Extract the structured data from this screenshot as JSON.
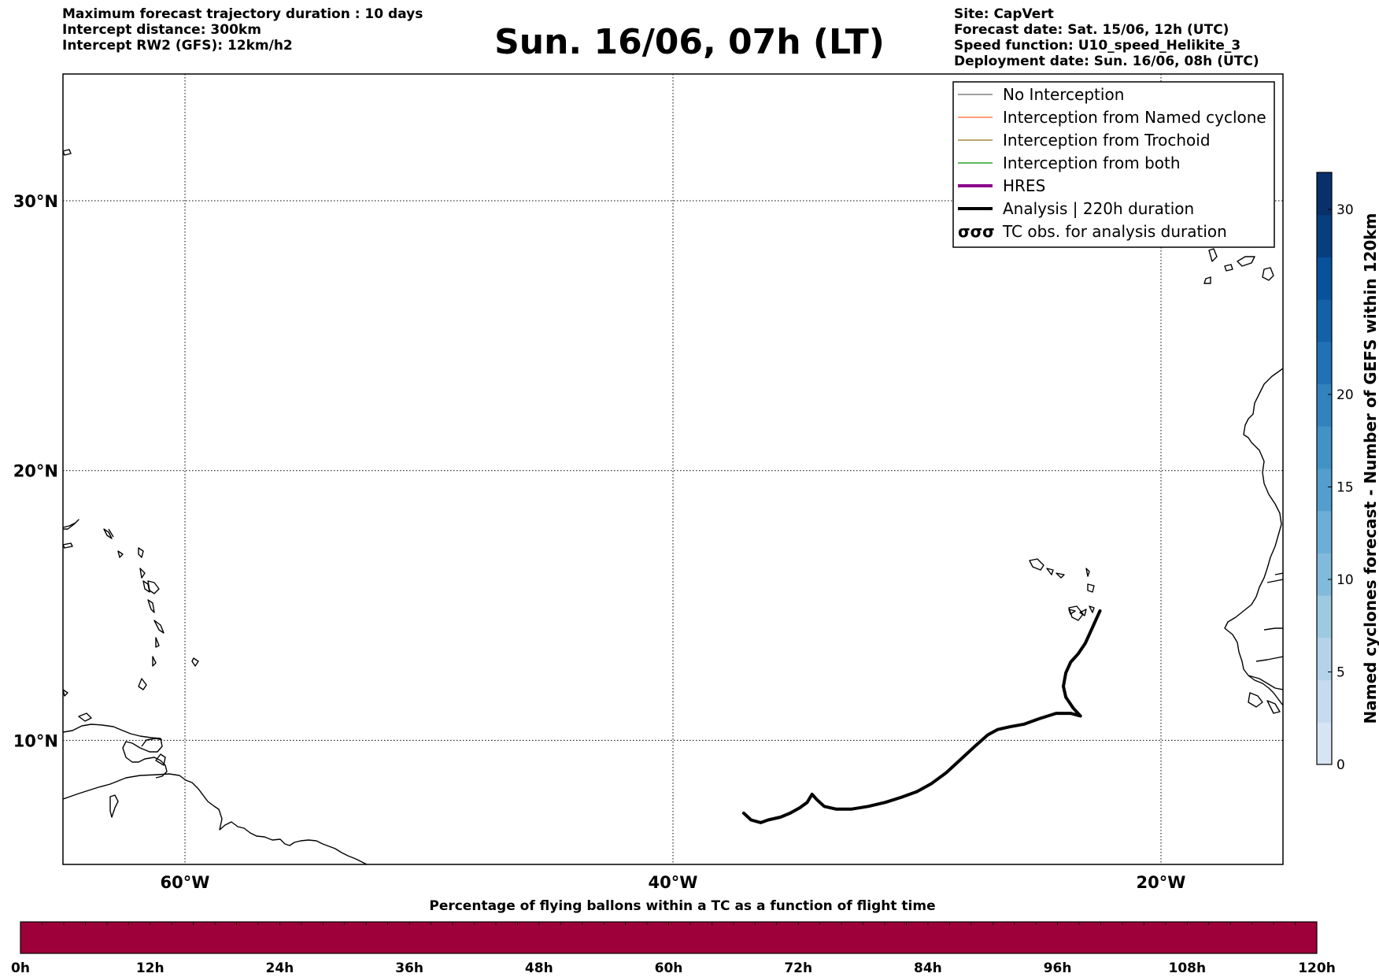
{
  "header_left": [
    "Maximum forecast trajectory duration : 10 days",
    "Intercept distance: 300km",
    "Intercept RW2 (GFS):  12km/h2"
  ],
  "title": "Sun. 16/06, 07h (LT)",
  "header_right": [
    "Site: CapVert",
    "Forecast date: Sat. 15/06, 12h (UTC)",
    "Speed function: U10_speed_Helikite_3",
    "Deployment date: Sun. 16/06, 08h (UTC)"
  ],
  "map": {
    "lon_range": [
      -65,
      -15
    ],
    "lat_range": [
      5.4,
      34.7
    ],
    "lat_lines": [
      {
        "value": 30,
        "label": "30°N"
      },
      {
        "value": 20,
        "label": "20°N"
      },
      {
        "value": 10,
        "label": "10°N"
      }
    ],
    "lon_lines": [
      {
        "value": -60,
        "label": "60°W"
      },
      {
        "value": -40,
        "label": "40°W"
      },
      {
        "value": -20,
        "label": "20°W"
      }
    ],
    "analysis_track": [
      [
        -22.5,
        14.8
      ],
      [
        -22.8,
        14.2
      ],
      [
        -23.1,
        13.6
      ],
      [
        -23.4,
        13.2
      ],
      [
        -23.7,
        12.9
      ],
      [
        -23.9,
        12.5
      ],
      [
        -24.0,
        12.0
      ],
      [
        -23.9,
        11.6
      ],
      [
        -23.6,
        11.2
      ],
      [
        -23.3,
        10.9
      ],
      [
        -23.7,
        11.0
      ],
      [
        -24.3,
        11.0
      ],
      [
        -25.0,
        10.8
      ],
      [
        -25.6,
        10.6
      ],
      [
        -26.2,
        10.5
      ],
      [
        -26.7,
        10.4
      ],
      [
        -27.1,
        10.2
      ],
      [
        -27.6,
        9.8
      ],
      [
        -28.2,
        9.3
      ],
      [
        -28.8,
        8.8
      ],
      [
        -29.4,
        8.4
      ],
      [
        -30.0,
        8.1
      ],
      [
        -30.6,
        7.9
      ],
      [
        -31.3,
        7.7
      ],
      [
        -32.0,
        7.55
      ],
      [
        -32.7,
        7.45
      ],
      [
        -33.3,
        7.45
      ],
      [
        -33.8,
        7.55
      ],
      [
        -34.1,
        7.8
      ],
      [
        -34.3,
        8.0
      ],
      [
        -34.5,
        7.7
      ],
      [
        -34.8,
        7.5
      ],
      [
        -35.2,
        7.3
      ],
      [
        -35.6,
        7.15
      ],
      [
        -36.1,
        7.05
      ],
      [
        -36.4,
        6.95
      ],
      [
        -36.8,
        7.05
      ],
      [
        -37.1,
        7.3
      ]
    ]
  },
  "legend": {
    "items": [
      {
        "label": "No Interception",
        "color": "#808080",
        "style": "thin"
      },
      {
        "label": "Interception from Named cyclone",
        "color": "#ff7f50",
        "style": "thin"
      },
      {
        "label": "Interception from Trochoid",
        "color": "#a08c3c",
        "style": "thin"
      },
      {
        "label": "Interception from both",
        "color": "#2ca02c",
        "style": "thin"
      },
      {
        "label": "HRES",
        "color": "#8b008b",
        "style": "thick"
      },
      {
        "label": "Analysis | 220h duration",
        "color": "#000000",
        "style": "thick"
      },
      {
        "label": "TC obs. for analysis duration",
        "color": "#000000",
        "style": "symbol"
      }
    ]
  },
  "colorbar": {
    "label": "Named cyclones forecast - Number of GEFS within 120km",
    "min": 0,
    "max": 32,
    "ticks": [
      0,
      5,
      10,
      15,
      20,
      30
    ],
    "colors": [
      "#d6e4f3",
      "#c6dbef",
      "#b4d3e9",
      "#9ecae1",
      "#82badb",
      "#6baed6",
      "#539ecd",
      "#4292c6",
      "#3282be",
      "#2171b5",
      "#1461a8",
      "#08519c",
      "#083e80",
      "#08306b"
    ]
  },
  "flight_bar": {
    "title": "Percentage of flying ballons within a TC as a function of flight time",
    "fill_color": "#9e003a",
    "ticks": [
      "0h",
      "12h",
      "24h",
      "36h",
      "48h",
      "60h",
      "72h",
      "84h",
      "96h",
      "108h",
      "120h"
    ]
  }
}
